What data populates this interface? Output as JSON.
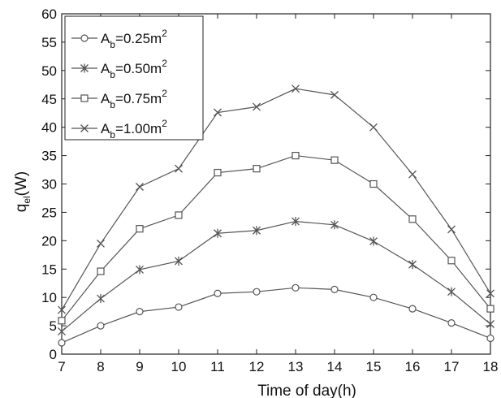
{
  "chart_data": {
    "type": "line",
    "x": [
      7,
      8,
      9,
      10,
      11,
      12,
      13,
      14,
      15,
      16,
      17,
      18
    ],
    "xlim": [
      7,
      18
    ],
    "ylim": [
      0,
      60
    ],
    "xticks": [
      7,
      8,
      9,
      10,
      11,
      12,
      13,
      14,
      15,
      16,
      17,
      18
    ],
    "yticks": [
      0,
      5,
      10,
      15,
      20,
      25,
      30,
      35,
      40,
      45,
      50,
      55,
      60
    ],
    "xlabel": "Time of day(h)",
    "ylabel": {
      "base": "q",
      "sub": "el",
      "rest": "(W)"
    },
    "legend_position": "top-left",
    "grid": false,
    "line_color": "#555555",
    "series": [
      {
        "name": "A_b=0.25m^2",
        "label_base": "A",
        "label_sub": "b",
        "label_mid": "=0.25m",
        "label_sup": "2",
        "marker": "circle",
        "values": [
          2.0,
          5.0,
          7.5,
          8.3,
          10.7,
          11.0,
          11.7,
          11.4,
          10.0,
          8.0,
          5.5,
          2.8
        ]
      },
      {
        "name": "A_b=0.50m^2",
        "label_base": "A",
        "label_sub": "b",
        "label_mid": "=0.50m",
        "label_sup": "2",
        "marker": "star",
        "values": [
          4.0,
          9.8,
          14.9,
          16.4,
          21.3,
          21.8,
          23.4,
          22.8,
          19.9,
          15.8,
          11.0,
          5.3
        ]
      },
      {
        "name": "A_b=0.75m^2",
        "label_base": "A",
        "label_sub": "b",
        "label_mid": "=0.75m",
        "label_sup": "2",
        "marker": "square",
        "values": [
          5.9,
          14.6,
          22.1,
          24.5,
          32.0,
          32.7,
          35.0,
          34.2,
          30.0,
          23.8,
          16.5,
          8.0
        ]
      },
      {
        "name": "A_b=1.00m^2",
        "label_base": "A",
        "label_sub": "b",
        "label_mid": "=1.00m",
        "label_sup": "2",
        "marker": "x",
        "values": [
          7.8,
          19.5,
          29.5,
          32.7,
          42.6,
          43.6,
          46.8,
          45.7,
          40.0,
          31.7,
          22.0,
          10.7
        ]
      }
    ]
  }
}
